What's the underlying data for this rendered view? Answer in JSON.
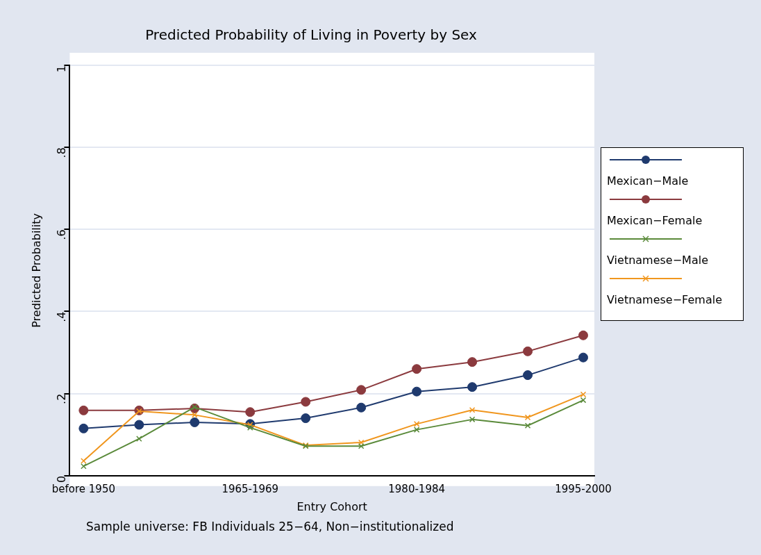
{
  "chart_data": {
    "type": "line",
    "title": "Predicted Probability of Living in Poverty by Sex",
    "xlabel": "Entry Cohort",
    "ylabel": "Predicted Probability",
    "annotations": [
      "Sample universe: FB Individuals 25−64, Non−institutionalized"
    ],
    "categories": [
      "before 1950",
      null,
      null,
      "1965-1969",
      null,
      null,
      "1980-1984",
      null,
      null,
      "1995-2000"
    ],
    "series": [
      {
        "name": "Mexican−Male",
        "color": "#1f3a6e",
        "marker": "circle",
        "values": [
          0.115,
          0.124,
          0.13,
          0.126,
          0.14,
          0.166,
          0.205,
          0.216,
          0.245,
          0.288
        ]
      },
      {
        "name": "Mexican−Female",
        "color": "#8b3a3e",
        "marker": "circle",
        "values": [
          0.159,
          0.159,
          0.164,
          0.155,
          0.18,
          0.209,
          0.26,
          0.277,
          0.303,
          0.342
        ]
      },
      {
        "name": "Vietnamese−Male",
        "color": "#5a8a3a",
        "marker": "cross",
        "values": [
          0.023,
          0.09,
          0.167,
          0.117,
          0.072,
          0.072,
          0.112,
          0.137,
          0.122,
          0.184
        ]
      },
      {
        "name": "Vietnamese−Female",
        "color": "#f0961e",
        "marker": "cross",
        "values": [
          0.036,
          0.157,
          0.148,
          0.124,
          0.074,
          0.081,
          0.126,
          0.16,
          0.142,
          0.198
        ]
      }
    ],
    "ylim": [
      0,
      1
    ],
    "yticks": [
      0,
      {
        "value": 0.2,
        "label": ".2"
      },
      {
        "value": 0.4,
        "label": ".4"
      },
      {
        "value": 0.6,
        "label": ".6"
      },
      {
        "value": 0.8,
        "label": ".8"
      },
      1
    ],
    "grid": "y",
    "legend": "right",
    "line_style": "solid"
  }
}
